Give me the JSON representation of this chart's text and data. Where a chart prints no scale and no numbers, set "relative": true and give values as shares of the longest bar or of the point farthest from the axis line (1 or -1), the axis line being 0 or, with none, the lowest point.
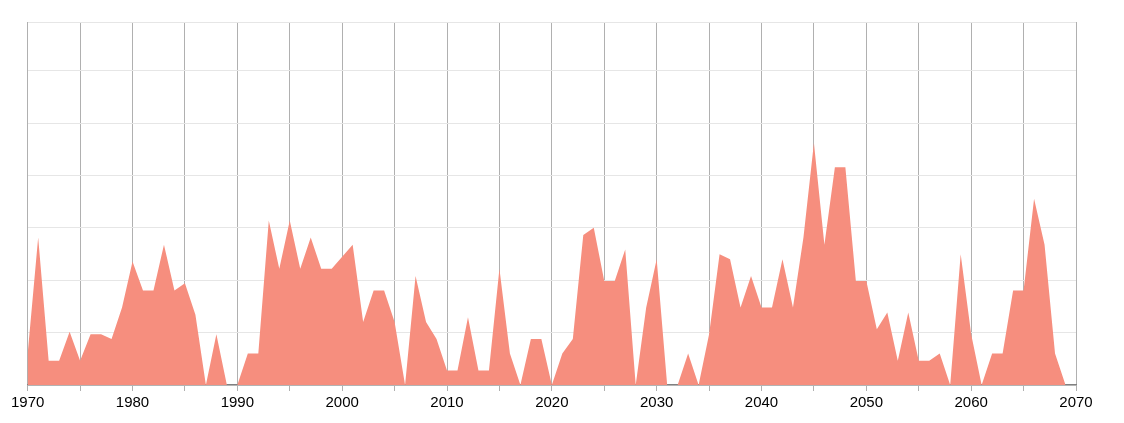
{
  "chart_data": {
    "type": "area",
    "relative": true,
    "grid": true,
    "x": [
      1970,
      1971,
      1972,
      1973,
      1974,
      1975,
      1976,
      1977,
      1978,
      1979,
      1980,
      1981,
      1982,
      1983,
      1984,
      1985,
      1986,
      1987,
      1988,
      1989,
      1990,
      1991,
      1992,
      1993,
      1994,
      1995,
      1996,
      1997,
      1998,
      1999,
      2000,
      2001,
      2002,
      2003,
      2004,
      2005,
      2006,
      2007,
      2008,
      2009,
      2010,
      2011,
      2012,
      2013,
      2014,
      2015,
      2016,
      2017,
      2018,
      2019,
      2020,
      2021,
      2022,
      2023,
      2024,
      2025,
      2026,
      2027,
      2028,
      2029,
      2030,
      2031,
      2032,
      2033,
      2034,
      2035,
      2036,
      2037,
      2038,
      2039,
      2040,
      2041,
      2042,
      2043,
      2044,
      2045,
      2046,
      2047,
      2048,
      2049,
      2050,
      2051,
      2052,
      2053,
      2054,
      2055,
      2056,
      2057,
      2058,
      2059,
      2060,
      2061,
      2062,
      2063,
      2064,
      2065,
      2066,
      2067,
      2068,
      2069
    ],
    "values": [
      0.13,
      0.61,
      0.1,
      0.1,
      0.22,
      0.1,
      0.21,
      0.21,
      0.19,
      0.32,
      0.51,
      0.39,
      0.39,
      0.58,
      0.39,
      0.42,
      0.29,
      0,
      0.21,
      0,
      0,
      0.13,
      0.13,
      0.68,
      0.48,
      0.68,
      0.48,
      0.61,
      0.48,
      0.48,
      0.53,
      0.58,
      0.26,
      0.39,
      0.39,
      0.26,
      0,
      0.45,
      0.26,
      0.19,
      0.06,
      0.06,
      0.28,
      0.06,
      0.06,
      0.48,
      0.13,
      0,
      0.19,
      0.19,
      0,
      0.13,
      0.19,
      0.62,
      0.65,
      0.43,
      0.43,
      0.56,
      0,
      0.32,
      0.52,
      0,
      0,
      0.13,
      0,
      0.21,
      0.54,
      0.52,
      0.32,
      0.45,
      0.32,
      0.32,
      0.52,
      0.32,
      0.61,
      1,
      0.58,
      0.9,
      0.9,
      0.43,
      0.43,
      0.23,
      0.3,
      0.1,
      0.3,
      0.1,
      0.1,
      0.13,
      0,
      0.54,
      0.21,
      0,
      0.13,
      0.13,
      0.39,
      0.39,
      0.77,
      0.58,
      0.13,
      0
    ],
    "color": "#f68e7e",
    "xlim": [
      1970,
      2070
    ],
    "xticks": [
      1970,
      {
        "value": 1975,
        "label": null
      },
      1980,
      {
        "value": 1985,
        "label": null
      },
      1990,
      {
        "value": 1995,
        "label": null
      },
      2000,
      {
        "value": 2005,
        "label": null
      },
      2010,
      {
        "value": 2015,
        "label": null
      },
      2020,
      {
        "value": 2025,
        "label": null
      },
      2030,
      {
        "value": 2035,
        "label": null
      },
      2040,
      {
        "value": 2045,
        "label": null
      },
      2050,
      {
        "value": 2055,
        "label": null
      },
      2060,
      {
        "value": 2065,
        "label": null
      },
      2070
    ]
  }
}
